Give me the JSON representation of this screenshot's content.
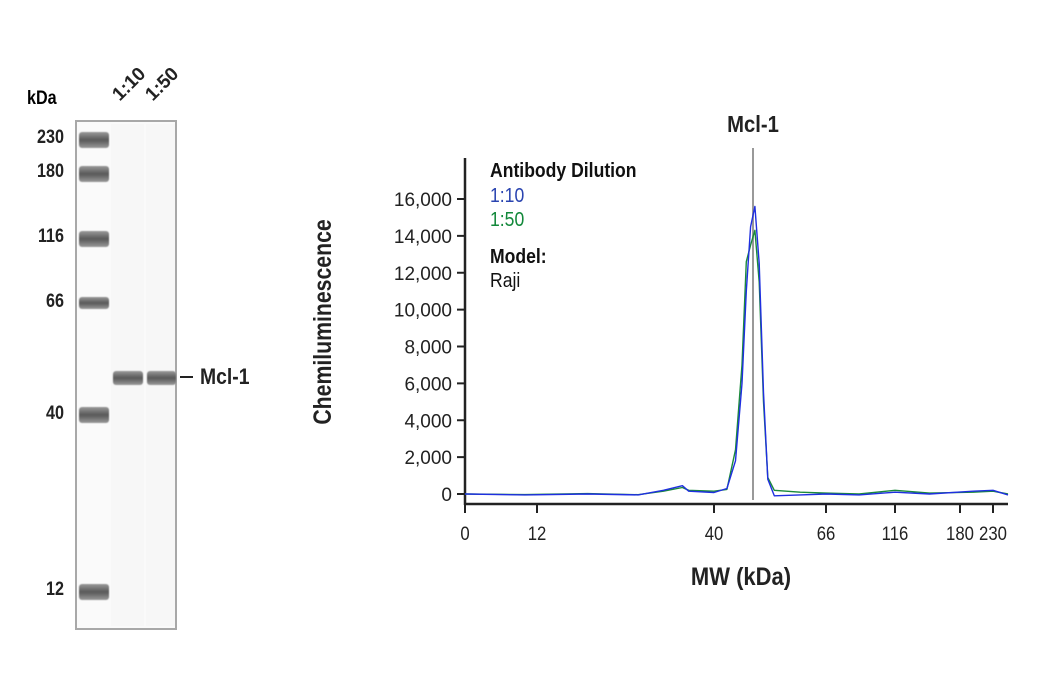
{
  "blot": {
    "unit_label": "kDa",
    "lanes": [
      "1:10",
      "1:50"
    ],
    "markers": [
      "230",
      "180",
      "116",
      "66",
      "40",
      "12"
    ],
    "target_label": "Mcl-1"
  },
  "chart_data": {
    "type": "line",
    "title": "Mcl-1",
    "xlabel": "MW (kDa)",
    "ylabel": "Chemiluminescence",
    "x_ticks": [
      0,
      12,
      40,
      66,
      116,
      180,
      230
    ],
    "y_ticks": [
      "0",
      "2,000",
      "4,000",
      "6,000",
      "8,000",
      "10,000",
      "12,000",
      "14,000",
      "16,000"
    ],
    "ylim": [
      0,
      16000
    ],
    "xlim": [
      0,
      250
    ],
    "x_scale": "nonlinear (MW ladder calibrated)",
    "marker_line_kda": 49,
    "legend": {
      "title": "Antibody Dilution",
      "model_label": "Model:",
      "model_value": "Raji",
      "placement": "top-left"
    },
    "series": [
      {
        "name": "1:10",
        "color": "#1f2fe0",
        "x": [
          0,
          10,
          20,
          28,
          32,
          35,
          36,
          40,
          43,
          45,
          46.5,
          47.5,
          48.5,
          49.5,
          50.5,
          51.5,
          52.5,
          54,
          60,
          66,
          90,
          116,
          150,
          200,
          230,
          250
        ],
        "y": [
          0,
          -50,
          0,
          -50,
          200,
          450,
          150,
          80,
          300,
          1800,
          6000,
          11000,
          14500,
          15600,
          12500,
          5500,
          800,
          -100,
          -50,
          0,
          -50,
          100,
          0,
          150,
          200,
          -50
        ]
      },
      {
        "name": "1:50",
        "color": "#1a8a3a",
        "x": [
          0,
          10,
          20,
          28,
          32,
          35,
          36,
          40,
          43,
          45,
          46.5,
          47.5,
          48.5,
          49.5,
          50.5,
          51.5,
          52.5,
          54,
          60,
          66,
          90,
          116,
          150,
          200,
          230,
          250
        ],
        "y": [
          0,
          -30,
          20,
          -40,
          150,
          350,
          200,
          150,
          250,
          2400,
          7000,
          12600,
          13500,
          14300,
          11500,
          5000,
          900,
          200,
          100,
          50,
          0,
          200,
          50,
          100,
          150,
          0
        ]
      }
    ]
  }
}
